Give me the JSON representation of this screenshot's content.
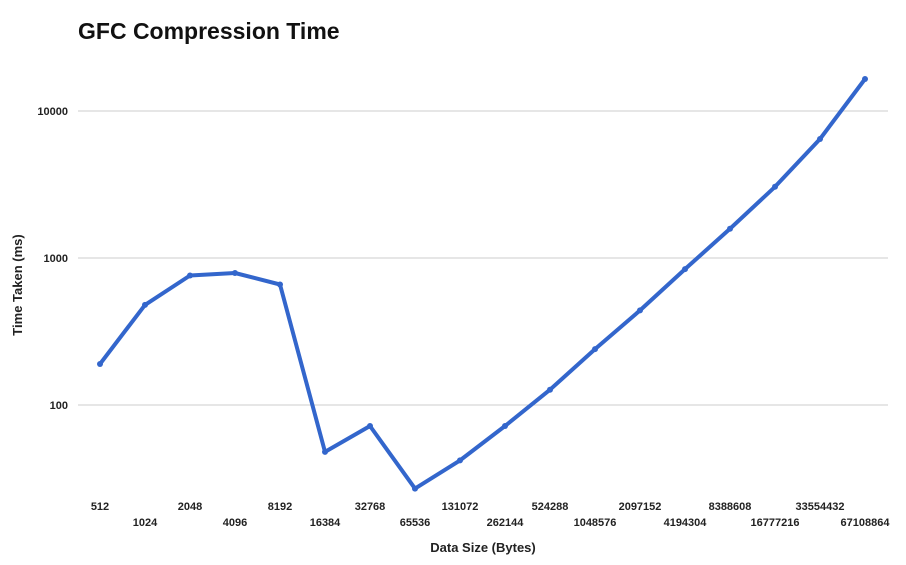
{
  "chart_data": {
    "type": "line",
    "title": "GFC Compression Time",
    "xlabel": "Data Size (Bytes)",
    "ylabel": "Time Taken (ms)",
    "yscale": "log",
    "ylim": [
      20,
      20000
    ],
    "yticks": [
      100,
      1000,
      10000
    ],
    "ytick_labels": [
      "100",
      "1000",
      "10000"
    ],
    "grid": true,
    "legend": "none",
    "categories": [
      "512",
      "1024",
      "2048",
      "4096",
      "8192",
      "16384",
      "32768",
      "65536",
      "131072",
      "262144",
      "524288",
      "1048576",
      "2097152",
      "4194304",
      "8388608",
      "16777216",
      "33554432",
      "67108864"
    ],
    "series": [
      {
        "values": [
          190,
          480,
          760,
          790,
          660,
          48,
          72,
          27,
          42,
          72,
          127,
          240,
          440,
          840,
          1580,
          3050,
          6450,
          16500
        ]
      }
    ],
    "colors": {
      "line": "#3366cc",
      "grid": "#cccccc",
      "text": "#222222"
    }
  }
}
